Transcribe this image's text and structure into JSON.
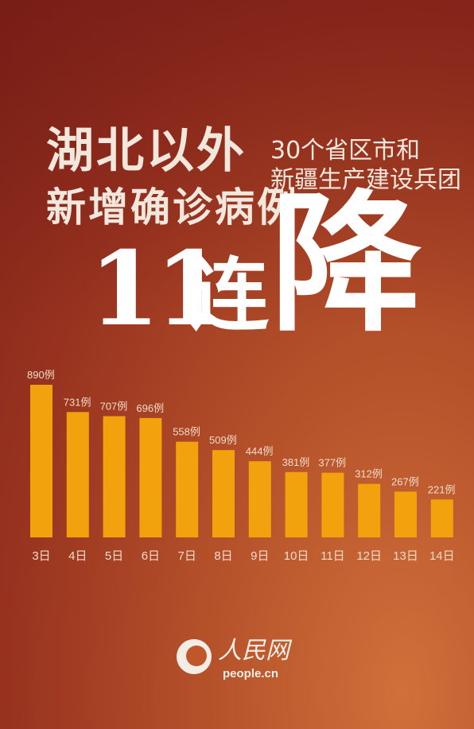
{
  "headline": {
    "line1": "湖北以外",
    "line2": "新增确诊病例",
    "sub1": "30个省区市和",
    "sub2": "新疆生产建设兵团",
    "big_number": "11",
    "big_lian": "连",
    "big_jiang": "降"
  },
  "logo": {
    "name": "人民网",
    "url": "people.cn"
  },
  "colors": {
    "bar": "#f2a20d",
    "label": "#f3dcc8"
  },
  "chart_data": {
    "type": "bar",
    "title": "",
    "xlabel": "",
    "ylabel": "",
    "categories": [
      "3日",
      "4日",
      "5日",
      "6日",
      "7日",
      "8日",
      "9日",
      "10日",
      "11日",
      "12日",
      "13日",
      "14日"
    ],
    "values": [
      890,
      731,
      707,
      696,
      558,
      509,
      444,
      381,
      377,
      312,
      267,
      221
    ],
    "value_labels": [
      "890例",
      "731例",
      "707例",
      "696例",
      "558例",
      "509例",
      "444例",
      "381例",
      "377例",
      "312例",
      "267例",
      "221例"
    ],
    "ylim": [
      0,
      890
    ],
    "grid": false,
    "legend": "none"
  }
}
